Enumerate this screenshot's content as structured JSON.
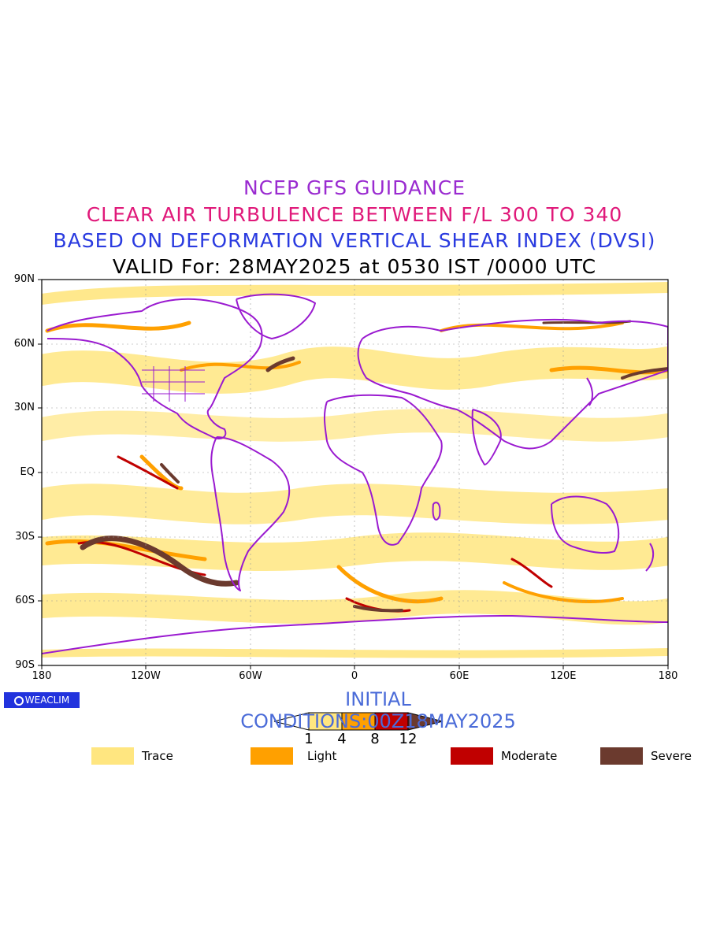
{
  "titles": {
    "line1": "NCEP GFS GUIDANCE",
    "line2": "CLEAR AIR TURBULENCE BETWEEN F/L 300 TO 340",
    "line3": "BASED ON DEFORMATION VERTICAL SHEAR INDEX (DVSI)",
    "line4": "VALID For: 28MAY2025 at 0530 IST /0000 UTC"
  },
  "axes": {
    "lat_labels": [
      "90N",
      "60N",
      "30N",
      "EQ",
      "30S",
      "60S",
      "90S"
    ],
    "lon_labels": [
      "180",
      "120W",
      "60W",
      "0",
      "60E",
      "120E",
      "180"
    ]
  },
  "brand": "WEACLIM",
  "initial_conditions": "INITIAL CONDITIONS:00Z18MAY2025",
  "colorbar": {
    "ticks": [
      "1",
      "4",
      "8",
      "12"
    ],
    "colors": [
      "#ffe680",
      "#ffa000",
      "#c00000",
      "#6b3a2e"
    ]
  },
  "legend": [
    {
      "label": "Trace",
      "color": "#ffe680"
    },
    {
      "label": "Light",
      "color": "#ffa000"
    },
    {
      "label": "Moderate",
      "color": "#c00000"
    },
    {
      "label": "Severe",
      "color": "#6b3a2e"
    }
  ],
  "map_colors": {
    "coastline": "#9a1ad0",
    "trace": "#ffe680",
    "light": "#ffa000",
    "moderate": "#c00000",
    "severe": "#6b3a2e"
  }
}
